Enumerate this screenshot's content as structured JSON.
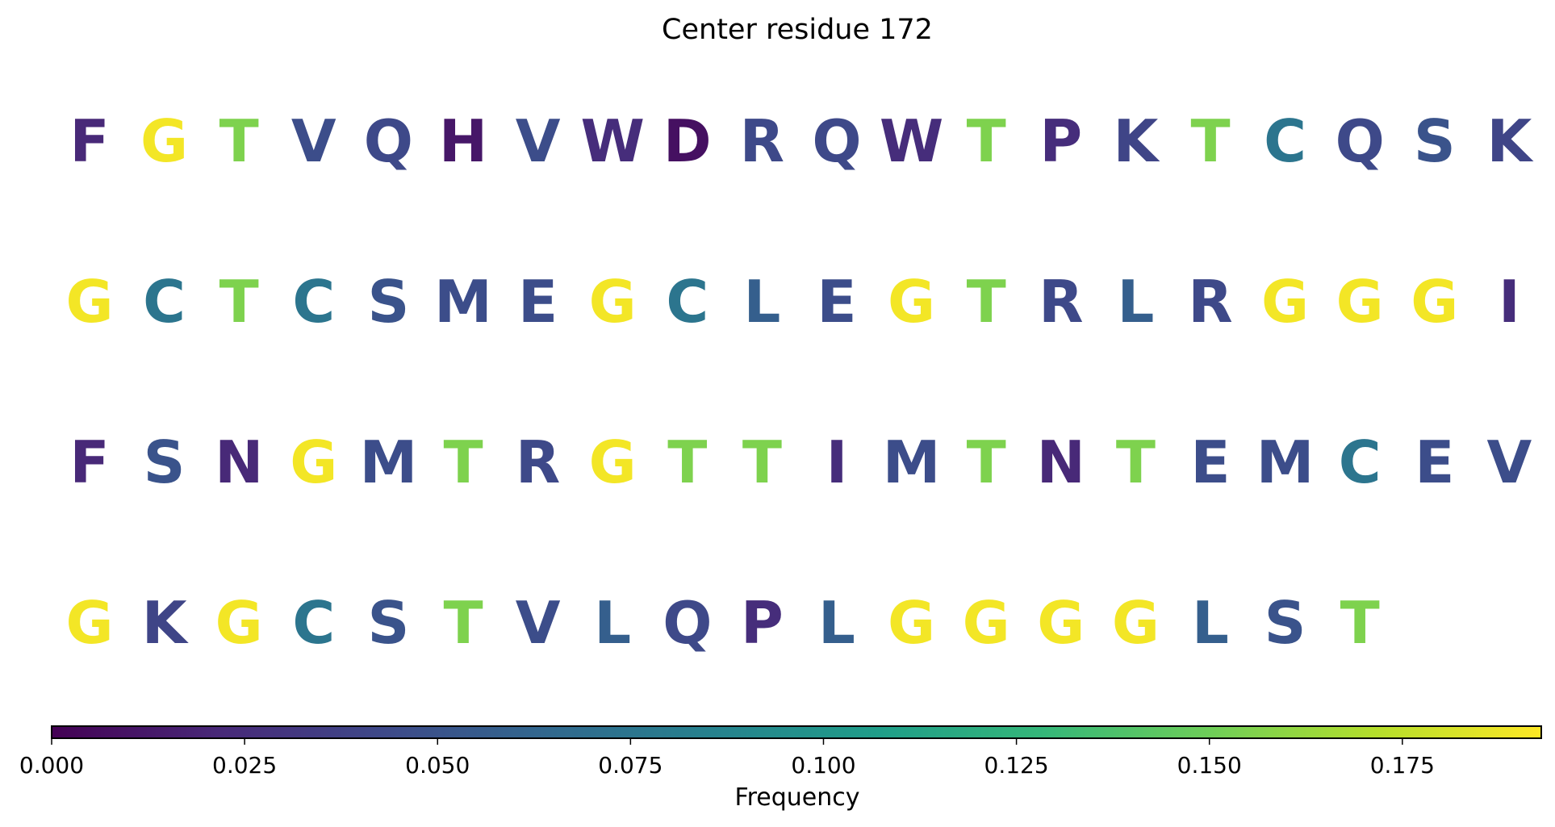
{
  "chart_data": {
    "type": "table",
    "title": "Center residue 172",
    "rows": [
      {
        "letters": [
          "F",
          "G",
          "T",
          "V",
          "Q",
          "H",
          "V",
          "W",
          "D",
          "R",
          "Q",
          "W",
          "T",
          "P",
          "K",
          "T",
          "C",
          "Q",
          "S",
          "K"
        ],
        "values": [
          0.022,
          0.19,
          0.155,
          0.046,
          0.043,
          0.012,
          0.046,
          0.025,
          0.008,
          0.043,
          0.043,
          0.025,
          0.155,
          0.025,
          0.04,
          0.155,
          0.075,
          0.043,
          0.05,
          0.04
        ]
      },
      {
        "letters": [
          "G",
          "C",
          "T",
          "C",
          "S",
          "M",
          "E",
          "G",
          "C",
          "L",
          "E",
          "G",
          "T",
          "R",
          "L",
          "R",
          "G",
          "G",
          "G",
          "I"
        ],
        "values": [
          0.19,
          0.075,
          0.155,
          0.075,
          0.05,
          0.046,
          0.046,
          0.19,
          0.075,
          0.058,
          0.046,
          0.19,
          0.155,
          0.043,
          0.058,
          0.043,
          0.19,
          0.19,
          0.19,
          0.025
        ]
      },
      {
        "letters": [
          "F",
          "S",
          "N",
          "G",
          "M",
          "T",
          "R",
          "G",
          "T",
          "T",
          "I",
          "M",
          "T",
          "N",
          "T",
          "E",
          "M",
          "C",
          "E",
          "V"
        ],
        "values": [
          0.022,
          0.05,
          0.022,
          0.19,
          0.046,
          0.155,
          0.043,
          0.19,
          0.155,
          0.155,
          0.025,
          0.046,
          0.155,
          0.022,
          0.155,
          0.046,
          0.046,
          0.075,
          0.046,
          0.046
        ]
      },
      {
        "letters": [
          "G",
          "K",
          "G",
          "C",
          "S",
          "T",
          "V",
          "L",
          "Q",
          "P",
          "L",
          "G",
          "G",
          "G",
          "G",
          "L",
          "S",
          "T"
        ],
        "values": [
          0.19,
          0.04,
          0.19,
          0.075,
          0.05,
          0.155,
          0.046,
          0.058,
          0.043,
          0.025,
          0.058,
          0.19,
          0.19,
          0.19,
          0.19,
          0.058,
          0.05,
          0.155
        ]
      }
    ],
    "colorbar": {
      "label": "Frequency",
      "colormap": "viridis",
      "range": [
        0,
        0.193
      ],
      "ticks": [
        0,
        0.025,
        0.05,
        0.075,
        0.1,
        0.125,
        0.15,
        0.175
      ],
      "tick_labels": [
        "0.000",
        "0.025",
        "0.050",
        "0.075",
        "0.100",
        "0.125",
        "0.150",
        "0.175"
      ],
      "orientation": "horizontal",
      "placement": "bottom"
    }
  }
}
